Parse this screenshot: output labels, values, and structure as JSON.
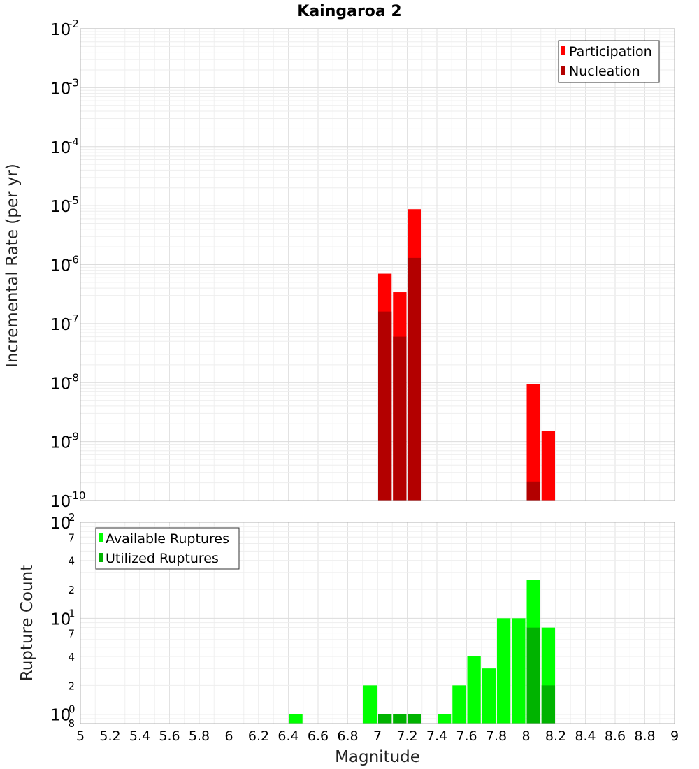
{
  "chart_data": [
    {
      "type": "bar",
      "title": "Kaingaroa 2",
      "ylabel": "Incremental Rate (per yr)",
      "xlim": [
        5,
        9
      ],
      "ylim": [
        1e-10,
        0.01
      ],
      "yscale": "log",
      "bin_width": 0.1,
      "grid": true,
      "legend_position": "top-right",
      "y_tick_labels": [
        {
          "base": "10",
          "exp": "-2"
        },
        {
          "base": "10",
          "exp": "-3"
        },
        {
          "base": "10",
          "exp": "-4"
        },
        {
          "base": "10",
          "exp": "-5"
        },
        {
          "base": "10",
          "exp": "-6"
        },
        {
          "base": "10",
          "exp": "-7"
        },
        {
          "base": "10",
          "exp": "-8"
        },
        {
          "base": "10",
          "exp": "-9"
        },
        {
          "base": "10",
          "exp": "-10"
        }
      ],
      "series": [
        {
          "name": "Participation",
          "color": "#ff0000",
          "x": [
            7.05,
            7.15,
            7.25,
            8.05,
            8.15
          ],
          "values": [
            7e-07,
            3.4e-07,
            8.7e-06,
            9.5e-09,
            1.5e-09
          ]
        },
        {
          "name": "Nucleation",
          "color": "#b30000",
          "x": [
            7.05,
            7.15,
            7.25,
            8.05
          ],
          "values": [
            1.6e-07,
            6e-08,
            1.3e-06,
            2.1e-10
          ]
        }
      ]
    },
    {
      "type": "bar",
      "xlabel": "Magnitude",
      "ylabel": "Rupture Count",
      "xlim": [
        5,
        9
      ],
      "ylim": [
        0.8,
        100
      ],
      "yscale": "log",
      "bin_width": 0.1,
      "grid": true,
      "legend_position": "top-left",
      "x_tick_labels": [
        "5",
        "5.2",
        "5.4",
        "5.6",
        "5.8",
        "6",
        "6.2",
        "6.4",
        "6.6",
        "6.8",
        "7",
        "7.2",
        "7.4",
        "7.6",
        "7.8",
        "8",
        "8.2",
        "8.4",
        "8.6",
        "8.8",
        "9"
      ],
      "y_tick_labels": [
        {
          "base": "10",
          "exp": "2"
        },
        {
          "base": "10",
          "exp": "1"
        },
        {
          "base": "10",
          "exp": "0"
        }
      ],
      "y_minor_labels": [
        {
          "value": 70,
          "label": "7"
        },
        {
          "value": 40,
          "label": "4"
        },
        {
          "value": 20,
          "label": "2"
        },
        {
          "value": 7,
          "label": "7"
        },
        {
          "value": 4,
          "label": "4"
        },
        {
          "value": 2,
          "label": "2"
        },
        {
          "value": 0.8,
          "label": "8"
        }
      ],
      "series": [
        {
          "name": "Available Ruptures",
          "color": "#00ff00",
          "x": [
            6.45,
            6.95,
            7.05,
            7.15,
            7.25,
            7.45,
            7.55,
            7.65,
            7.75,
            7.85,
            7.95,
            8.05,
            8.15
          ],
          "values": [
            1,
            2,
            1,
            1,
            1,
            1,
            2,
            4,
            3,
            10,
            10,
            25,
            8
          ]
        },
        {
          "name": "Utilized Ruptures",
          "color": "#00b300",
          "x": [
            7.05,
            7.15,
            7.25,
            8.05,
            8.15
          ],
          "values": [
            1,
            1,
            1,
            8,
            2
          ]
        }
      ]
    }
  ]
}
